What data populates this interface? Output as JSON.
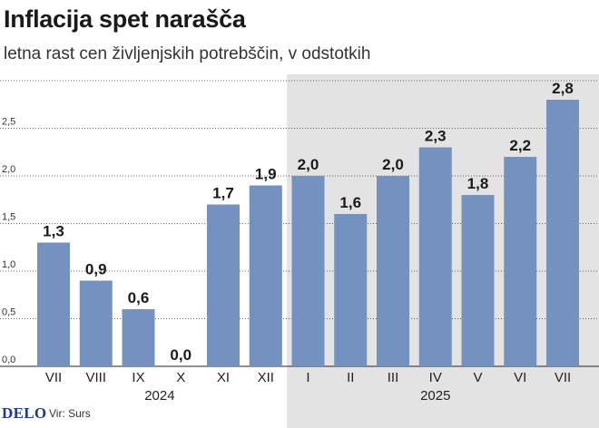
{
  "title": "Inflacija spet narašča",
  "subtitle": "letna rast cen življenjskih potrebščin, v odstotkih",
  "footer": {
    "logo": "DELO",
    "source": "Vir: Surs"
  },
  "colors": {
    "bar": "#7491c0",
    "shade": "#e3e3e3",
    "grid": "#333333"
  },
  "chart_data": {
    "type": "bar",
    "title": "Inflacija spet narašča",
    "subtitle": "letna rast cen življenjskih potrebščin, v odstotkih",
    "xlabel": "",
    "ylabel": "",
    "ylim": [
      0,
      3.0
    ],
    "yticks": [
      0.0,
      0.5,
      1.0,
      1.5,
      2.0,
      2.5
    ],
    "ytick_labels": [
      "0,0",
      "0,5",
      "1,0",
      "1,5",
      "2,0",
      "2,5"
    ],
    "grid": "dotted horizontal",
    "categories": [
      "VII",
      "VIII",
      "IX",
      "X",
      "XI",
      "XII",
      "I",
      "II",
      "III",
      "IV",
      "V",
      "VI",
      "VII"
    ],
    "values": [
      1.3,
      0.9,
      0.6,
      0.0,
      1.7,
      1.9,
      2.0,
      1.6,
      2.0,
      2.3,
      1.8,
      2.2,
      2.8
    ],
    "value_labels": [
      "1,3",
      "0,9",
      "0,6",
      "0,0",
      "1,7",
      "1,9",
      "2,0",
      "1,6",
      "2,0",
      "2,3",
      "1,8",
      "2,2",
      "2,8"
    ],
    "groups": [
      {
        "label": "2024",
        "start": 0,
        "end": 5
      },
      {
        "label": "2025",
        "start": 6,
        "end": 12,
        "shaded": true
      }
    ]
  }
}
